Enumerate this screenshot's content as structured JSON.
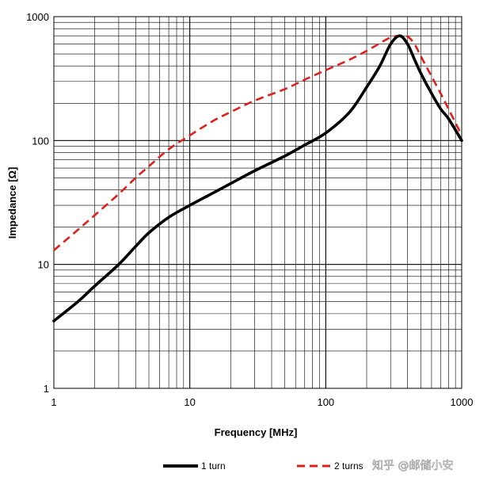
{
  "chart_data": {
    "type": "line",
    "xlabel": "Frequency [MHz]",
    "ylabel": "Impedance [Ω]",
    "xscale": "log",
    "yscale": "log",
    "xlim": [
      1,
      1000
    ],
    "ylim": [
      1,
      1000
    ],
    "x_ticks": [
      "1",
      "10",
      "100",
      "1000"
    ],
    "y_ticks": [
      "1",
      "10",
      "100",
      "1000"
    ],
    "grid": true,
    "legend_position": "bottom",
    "series": [
      {
        "name": "1 turn",
        "color": "#000000",
        "style": "solid",
        "x": [
          1,
          1.5,
          2,
          3,
          4,
          5,
          7,
          10,
          15,
          20,
          30,
          50,
          70,
          100,
          150,
          200,
          250,
          300,
          350,
          400,
          450,
          500,
          600,
          700,
          800,
          1000
        ],
        "y": [
          3.5,
          5,
          6.7,
          10,
          14,
          18,
          24,
          30,
          38,
          45,
          57,
          75,
          92,
          115,
          170,
          270,
          400,
          600,
          700,
          600,
          450,
          350,
          240,
          180,
          150,
          100
        ]
      },
      {
        "name": "2 turns",
        "color": "#e0201b",
        "style": "dashed",
        "x": [
          1,
          1.5,
          2,
          3,
          4,
          5,
          7,
          10,
          15,
          20,
          30,
          50,
          70,
          100,
          150,
          200,
          250,
          300,
          350,
          400,
          450,
          500,
          600,
          700,
          800,
          1000
        ],
        "y": [
          13,
          19,
          25,
          37,
          50,
          62,
          85,
          110,
          145,
          170,
          210,
          260,
          310,
          370,
          450,
          530,
          610,
          680,
          700,
          690,
          600,
          480,
          330,
          240,
          180,
          110
        ]
      }
    ]
  },
  "watermark": "知乎 @邮储小安"
}
